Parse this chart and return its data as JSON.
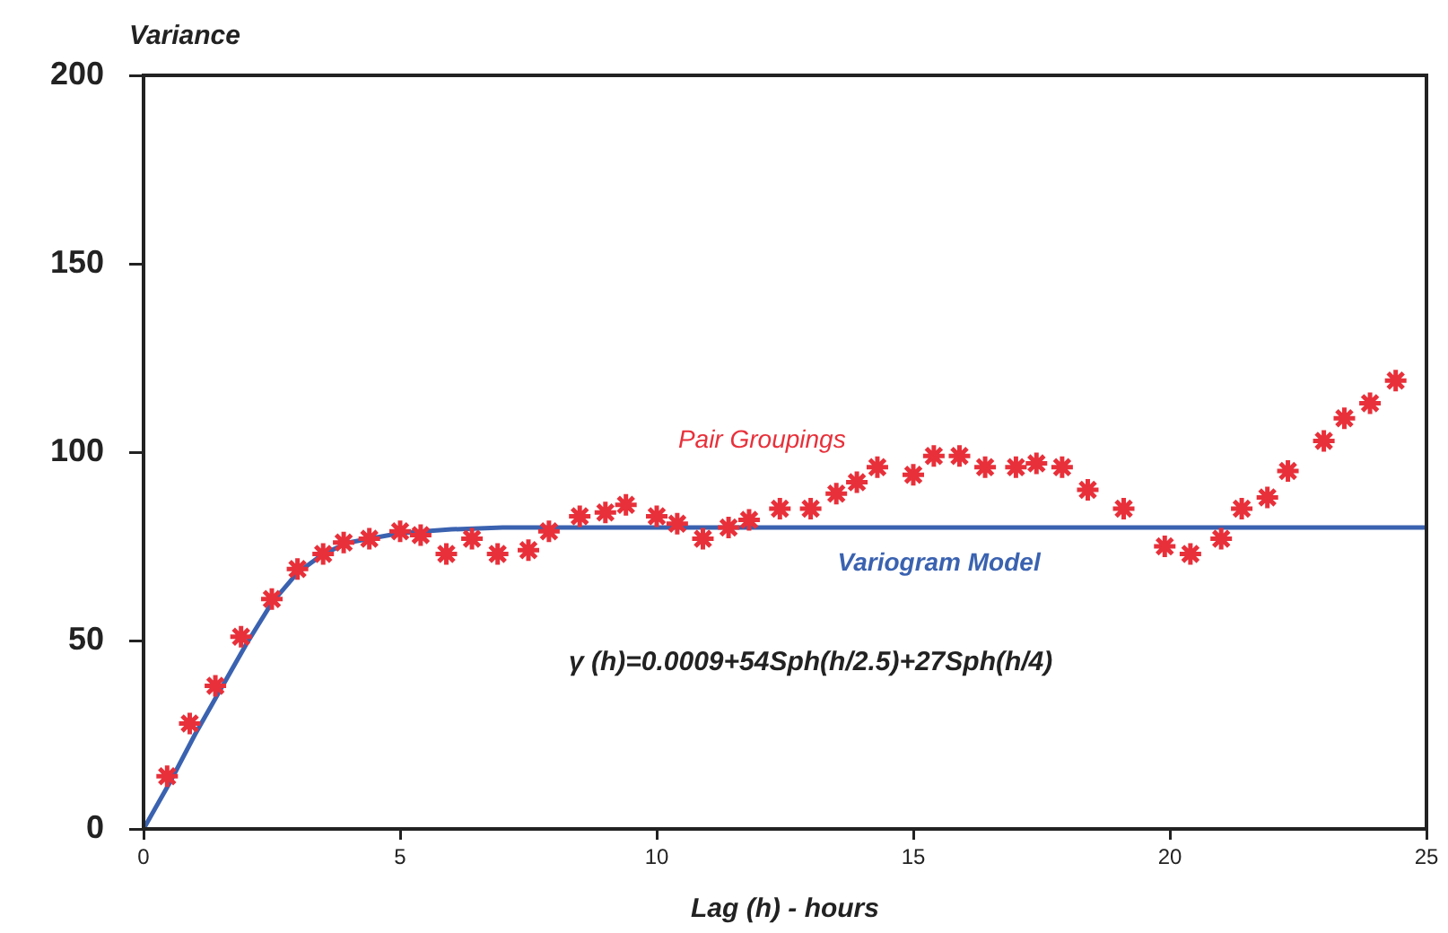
{
  "chart_data": {
    "type": "scatter",
    "xlabel": "Lag (h) - hours",
    "ylabel": "Variance",
    "xlim": [
      0,
      25
    ],
    "xticks": [
      0,
      5,
      10,
      15,
      20,
      25
    ],
    "ylim": [
      0,
      200
    ],
    "yticks": [
      0,
      50,
      100,
      150,
      200
    ],
    "grid": false,
    "legend": false,
    "marker": "cross",
    "annotations": [
      "γ (h)=0.0009+54Sph(h/2.5)+27Sph(h/4)"
    ],
    "series": [
      {
        "name": "Pair Groupings",
        "color": "#e8303a",
        "x": [
          0.46,
          0.9,
          1.4,
          1.9,
          2.5,
          3.0,
          3.5,
          3.9,
          4.4,
          5.0,
          5.4,
          5.9,
          6.4,
          6.9,
          7.5,
          7.9,
          8.5,
          9.0,
          9.4,
          10.0,
          10.4,
          10.9,
          11.4,
          11.8,
          12.4,
          13.0,
          13.5,
          13.9,
          14.3,
          15.0,
          15.4,
          15.9,
          16.4,
          17.0,
          17.4,
          17.9,
          18.4,
          19.1,
          19.9,
          20.4,
          21.0,
          21.4,
          21.9,
          22.3,
          23.0,
          23.4,
          23.9,
          24.4
        ],
        "values": [
          14,
          28,
          38,
          51,
          61,
          69,
          73,
          76,
          77,
          79,
          78,
          73,
          77,
          73,
          74,
          79,
          83,
          84,
          86,
          83,
          81,
          77,
          80,
          82,
          85,
          85,
          89,
          92,
          96,
          94,
          99,
          99,
          96,
          96,
          97,
          96,
          90,
          85,
          75,
          73,
          77,
          85,
          88,
          95,
          103,
          109,
          113,
          119
        ]
      },
      {
        "name": "Variogram Model",
        "color": "#3a62b0",
        "type": "line",
        "marker": "none",
        "line_style": "solid",
        "x": [
          0,
          0.5,
          1,
          1.5,
          2,
          2.5,
          3,
          3.5,
          4,
          5,
          6,
          7,
          8,
          25
        ],
        "values": [
          0,
          12,
          25,
          37,
          49,
          60,
          68,
          73,
          76,
          78.5,
          79.5,
          80,
          80,
          80
        ]
      }
    ]
  }
}
